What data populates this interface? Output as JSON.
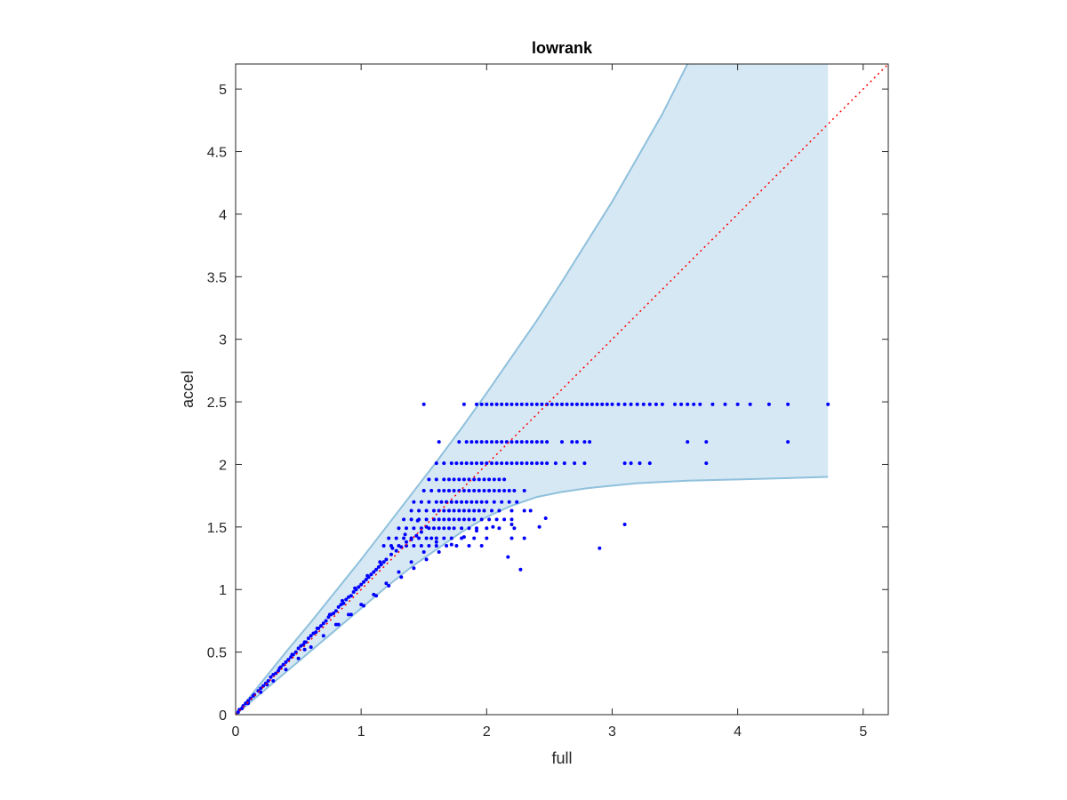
{
  "chart_data": {
    "type": "scatter",
    "title": "lowrank",
    "xlabel": "full",
    "ylabel": "accel",
    "xlim": [
      0,
      5.2
    ],
    "ylim": [
      0,
      5.2
    ],
    "xticks": [
      0,
      1,
      2,
      3,
      4,
      5
    ],
    "xtick_labels": [
      "0",
      "1",
      "2",
      "3",
      "4",
      "5"
    ],
    "yticks": [
      0,
      0.5,
      1,
      1.5,
      2,
      2.5,
      3,
      3.5,
      4,
      4.5,
      5
    ],
    "ytick_labels": [
      "0",
      "0.5",
      "1",
      "1.5",
      "2",
      "2.5",
      "3",
      "3.5",
      "4",
      "4.5",
      "5"
    ],
    "grid": false,
    "colors": {
      "points": "#0000ff",
      "band_fill": "#d6e8f4",
      "band_edge": "#8fc0dc",
      "reference_line": "#ff0000",
      "axes": "#262626"
    },
    "reference_line": {
      "style": "dotted",
      "x": [
        0,
        5.2
      ],
      "y": [
        0,
        5.2
      ]
    },
    "band": {
      "upper": {
        "x": [
          0,
          0.2,
          0.4,
          0.6,
          0.8,
          1.0,
          1.2,
          1.4,
          1.6,
          1.8,
          2.0,
          2.2,
          2.4,
          2.6,
          2.8,
          3.0,
          3.2,
          3.4,
          3.6
        ],
        "y": [
          0,
          0.25,
          0.5,
          0.74,
          0.99,
          1.24,
          1.5,
          1.76,
          2.02,
          2.29,
          2.57,
          2.86,
          3.15,
          3.46,
          3.78,
          4.1,
          4.45,
          4.8,
          5.2
        ]
      },
      "right_edge": {
        "x": [
          4.72,
          4.72
        ],
        "y": [
          5.2,
          1.9
        ]
      },
      "lower": {
        "x": [
          4.72,
          4.4,
          4.0,
          3.6,
          3.2,
          3.0,
          2.8,
          2.6,
          2.4,
          2.2,
          2.0,
          1.8,
          1.6,
          1.4,
          1.2,
          1.0,
          0.8,
          0.6,
          0.4,
          0.2,
          0
        ],
        "y": [
          1.9,
          1.89,
          1.88,
          1.87,
          1.85,
          1.83,
          1.81,
          1.78,
          1.74,
          1.67,
          1.58,
          1.46,
          1.32,
          1.18,
          1.02,
          0.85,
          0.68,
          0.51,
          0.34,
          0.17,
          0
        ]
      }
    },
    "series": [
      {
        "rows": [
          {
            "y": 2.48,
            "x": [
              1.5,
              1.82,
              1.92,
              1.96,
              2.0,
              2.04,
              2.08,
              2.12,
              2.16,
              2.2,
              2.24,
              2.28,
              2.32,
              2.36,
              2.4,
              2.44,
              2.48,
              2.52,
              2.56,
              2.6,
              2.64,
              2.68,
              2.72,
              2.76,
              2.8,
              2.84,
              2.88,
              2.92,
              2.96,
              3.0,
              3.05,
              3.1,
              3.15,
              3.2,
              3.25,
              3.3,
              3.35,
              3.4,
              3.5,
              3.55,
              3.6,
              3.65,
              3.7,
              3.8,
              3.9,
              4.0,
              4.1,
              4.25,
              4.4,
              4.72
            ]
          },
          {
            "y": 2.18,
            "x": [
              1.62,
              1.78,
              1.84,
              1.88,
              1.92,
              1.96,
              2.0,
              2.04,
              2.08,
              2.12,
              2.16,
              2.2,
              2.24,
              2.28,
              2.32,
              2.36,
              2.4,
              2.44,
              2.48,
              2.6,
              2.68,
              2.72,
              2.78,
              2.82,
              3.6,
              3.75,
              4.4
            ]
          },
          {
            "y": 2.01,
            "x": [
              1.6,
              1.66,
              1.72,
              1.76,
              1.8,
              1.84,
              1.88,
              1.92,
              1.96,
              2.0,
              2.04,
              2.08,
              2.12,
              2.16,
              2.2,
              2.24,
              2.28,
              2.32,
              2.36,
              2.4,
              2.44,
              2.48,
              2.55,
              2.62,
              2.7,
              2.78,
              3.1,
              3.15,
              3.22,
              3.3,
              3.75
            ]
          },
          {
            "y": 1.88,
            "x": [
              1.54,
              1.6,
              1.66,
              1.7,
              1.74,
              1.78,
              1.82,
              1.86,
              1.9,
              1.94,
              1.98,
              2.02,
              2.06,
              2.1,
              2.14
            ]
          },
          {
            "y": 1.79,
            "x": [
              1.5,
              1.56,
              1.62,
              1.66,
              1.7,
              1.74,
              1.78,
              1.82,
              1.86,
              1.9,
              1.94,
              1.98,
              2.02,
              2.06,
              2.1,
              2.14,
              2.18,
              2.22,
              2.3
            ]
          },
          {
            "y": 1.7,
            "x": [
              1.42,
              1.48,
              1.54,
              1.6,
              1.64,
              1.68,
              1.72,
              1.76,
              1.8,
              1.84,
              1.88,
              1.92,
              1.96,
              2.0,
              2.06,
              2.12,
              2.18,
              2.24
            ]
          },
          {
            "y": 1.63,
            "x": [
              1.4,
              1.46,
              1.52,
              1.58,
              1.62,
              1.66,
              1.7,
              1.74,
              1.78,
              1.82,
              1.86,
              1.9,
              1.94,
              1.98,
              2.04,
              2.1,
              2.2,
              2.3,
              2.35
            ]
          },
          {
            "y": 1.56,
            "x": [
              1.34,
              1.4,
              1.46,
              1.52,
              1.58,
              1.62,
              1.66,
              1.7,
              1.74,
              1.78,
              1.82,
              1.86,
              1.9,
              1.96,
              2.02,
              2.08,
              2.14,
              2.2
            ]
          },
          {
            "y": 1.49,
            "x": [
              1.3,
              1.36,
              1.42,
              1.48,
              1.54,
              1.58,
              1.62,
              1.66,
              1.7,
              1.74,
              1.8,
              1.86,
              1.92,
              2.0,
              2.1,
              2.22
            ]
          },
          {
            "y": 1.41,
            "x": [
              1.22,
              1.28,
              1.34,
              1.4,
              1.46,
              1.52,
              1.56,
              1.6,
              1.66,
              1.72,
              1.8,
              1.9,
              2.0,
              2.2
            ]
          },
          {
            "y": 1.35,
            "x": [
              1.18,
              1.24,
              1.3,
              1.36,
              1.42,
              1.48,
              1.54,
              1.6,
              1.68,
              1.76,
              1.86,
              1.96
            ]
          }
        ],
        "x": [
          0.02,
          0.03,
          0.05,
          0.06,
          0.08,
          0.1,
          0.12,
          0.14,
          0.15,
          0.18,
          0.2,
          0.22,
          0.24,
          0.26,
          0.28,
          0.3,
          0.32,
          0.34,
          0.36,
          0.38,
          0.4,
          0.42,
          0.44,
          0.46,
          0.48,
          0.5,
          0.52,
          0.54,
          0.56,
          0.58,
          0.6,
          0.62,
          0.64,
          0.66,
          0.68,
          0.7,
          0.72,
          0.74,
          0.76,
          0.78,
          0.8,
          0.82,
          0.84,
          0.86,
          0.88,
          0.9,
          0.92,
          0.94,
          0.96,
          0.98,
          1.0,
          1.02,
          1.04,
          1.06,
          1.08,
          1.1,
          1.12,
          1.14,
          1.16,
          1.18,
          1.2,
          1.24,
          1.28,
          1.32,
          1.36,
          1.4,
          1.44,
          1.48,
          1.52,
          0.1,
          0.2,
          0.3,
          0.4,
          0.5,
          0.6,
          0.7,
          0.8,
          0.9,
          1.0,
          1.1,
          1.2,
          1.3,
          1.4,
          1.5,
          1.6,
          0.35,
          0.45,
          0.55,
          0.65,
          0.75,
          0.85,
          0.95,
          1.05,
          1.15,
          1.25,
          1.35,
          1.45,
          0.25,
          0.55,
          0.82,
          0.92,
          1.02,
          1.12,
          1.22,
          1.32,
          1.42,
          1.52,
          1.62,
          1.72,
          1.82,
          1.92,
          2.05,
          2.2,
          2.3,
          2.42,
          2.47,
          2.9,
          3.1,
          2.17,
          2.27
        ],
        "y": [
          0.02,
          0.04,
          0.05,
          0.07,
          0.09,
          0.11,
          0.13,
          0.15,
          0.16,
          0.19,
          0.21,
          0.23,
          0.25,
          0.27,
          0.3,
          0.32,
          0.33,
          0.35,
          0.38,
          0.4,
          0.42,
          0.44,
          0.46,
          0.48,
          0.5,
          0.53,
          0.55,
          0.56,
          0.58,
          0.61,
          0.63,
          0.65,
          0.66,
          0.69,
          0.71,
          0.73,
          0.75,
          0.78,
          0.8,
          0.81,
          0.83,
          0.86,
          0.88,
          0.89,
          0.92,
          0.94,
          0.95,
          0.98,
          1.0,
          1.02,
          1.04,
          1.06,
          1.08,
          1.1,
          1.12,
          1.14,
          1.16,
          1.18,
          1.2,
          1.22,
          1.24,
          1.28,
          1.31,
          1.34,
          1.38,
          1.4,
          1.43,
          1.46,
          1.5,
          0.09,
          0.18,
          0.27,
          0.36,
          0.45,
          0.54,
          0.63,
          0.72,
          0.8,
          0.88,
          0.96,
          1.05,
          1.14,
          1.22,
          1.3,
          1.38,
          0.37,
          0.48,
          0.58,
          0.69,
          0.8,
          0.91,
          1.01,
          1.11,
          1.22,
          1.33,
          1.44,
          1.55,
          0.24,
          0.52,
          0.72,
          0.8,
          0.87,
          0.95,
          1.03,
          1.1,
          1.17,
          1.24,
          1.3,
          1.36,
          1.42,
          1.47,
          1.5,
          1.52,
          1.41,
          1.5,
          1.57,
          1.33,
          1.52,
          1.26,
          1.16
        ]
      }
    ]
  }
}
